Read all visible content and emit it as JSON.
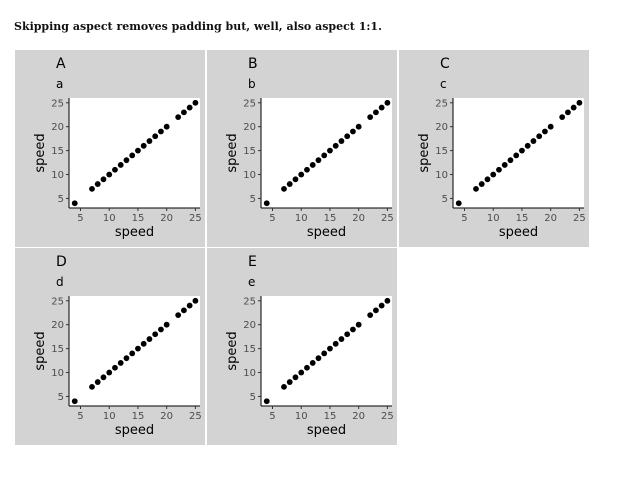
{
  "caption": "Skipping aspect removes padding but, well, also aspect 1:1.",
  "chart_data": [
    {
      "type": "scatter",
      "tag": "A",
      "title": "a",
      "xlabel": "speed",
      "ylabel": "speed",
      "xlim": [
        3.0,
        25.8
      ],
      "ylim": [
        3.0,
        26.0
      ],
      "xticks": [
        5,
        10,
        15,
        20,
        25
      ],
      "yticks": [
        5,
        10,
        15,
        20,
        25
      ],
      "x": [
        4,
        7,
        8,
        9,
        10,
        11,
        12,
        13,
        14,
        15,
        16,
        17,
        18,
        19,
        20,
        22,
        23,
        24,
        25
      ],
      "y": [
        4,
        7,
        8,
        9,
        10,
        11,
        12,
        13,
        14,
        15,
        16,
        17,
        18,
        19,
        20,
        22,
        23,
        24,
        25
      ]
    },
    {
      "type": "scatter",
      "tag": "B",
      "title": "b",
      "xlabel": "speed",
      "ylabel": "speed",
      "xlim": [
        3.0,
        25.8
      ],
      "ylim": [
        3.0,
        26.0
      ],
      "xticks": [
        5,
        10,
        15,
        20,
        25
      ],
      "yticks": [
        5,
        10,
        15,
        20,
        25
      ],
      "x": [
        4,
        7,
        8,
        9,
        10,
        11,
        12,
        13,
        14,
        15,
        16,
        17,
        18,
        19,
        20,
        22,
        23,
        24,
        25
      ],
      "y": [
        4,
        7,
        8,
        9,
        10,
        11,
        12,
        13,
        14,
        15,
        16,
        17,
        18,
        19,
        20,
        22,
        23,
        24,
        25
      ]
    },
    {
      "type": "scatter",
      "tag": "C",
      "title": "c",
      "xlabel": "speed",
      "ylabel": "speed",
      "xlim": [
        3.0,
        25.8
      ],
      "ylim": [
        3.0,
        26.0
      ],
      "xticks": [
        5,
        10,
        15,
        20,
        25
      ],
      "yticks": [
        5,
        10,
        15,
        20,
        25
      ],
      "x": [
        4,
        7,
        8,
        9,
        10,
        11,
        12,
        13,
        14,
        15,
        16,
        17,
        18,
        19,
        20,
        22,
        23,
        24,
        25
      ],
      "y": [
        4,
        7,
        8,
        9,
        10,
        11,
        12,
        13,
        14,
        15,
        16,
        17,
        18,
        19,
        20,
        22,
        23,
        24,
        25
      ]
    },
    {
      "type": "scatter",
      "tag": "D",
      "title": "d",
      "xlabel": "speed",
      "ylabel": "speed",
      "xlim": [
        3.0,
        25.8
      ],
      "ylim": [
        3.0,
        26.0
      ],
      "xticks": [
        5,
        10,
        15,
        20,
        25
      ],
      "yticks": [
        5,
        10,
        15,
        20,
        25
      ],
      "x": [
        4,
        7,
        8,
        9,
        10,
        11,
        12,
        13,
        14,
        15,
        16,
        17,
        18,
        19,
        20,
        22,
        23,
        24,
        25
      ],
      "y": [
        4,
        7,
        8,
        9,
        10,
        11,
        12,
        13,
        14,
        15,
        16,
        17,
        18,
        19,
        20,
        22,
        23,
        24,
        25
      ]
    },
    {
      "type": "scatter",
      "tag": "E",
      "title": "e",
      "xlabel": "speed",
      "ylabel": "speed",
      "xlim": [
        3.0,
        25.8
      ],
      "ylim": [
        3.0,
        26.0
      ],
      "xticks": [
        5,
        10,
        15,
        20,
        25
      ],
      "yticks": [
        5,
        10,
        15,
        20,
        25
      ],
      "x": [
        4,
        7,
        8,
        9,
        10,
        11,
        12,
        13,
        14,
        15,
        16,
        17,
        18,
        19,
        20,
        22,
        23,
        24,
        25
      ],
      "y": [
        4,
        7,
        8,
        9,
        10,
        11,
        12,
        13,
        14,
        15,
        16,
        17,
        18,
        19,
        20,
        22,
        23,
        24,
        25
      ]
    }
  ]
}
